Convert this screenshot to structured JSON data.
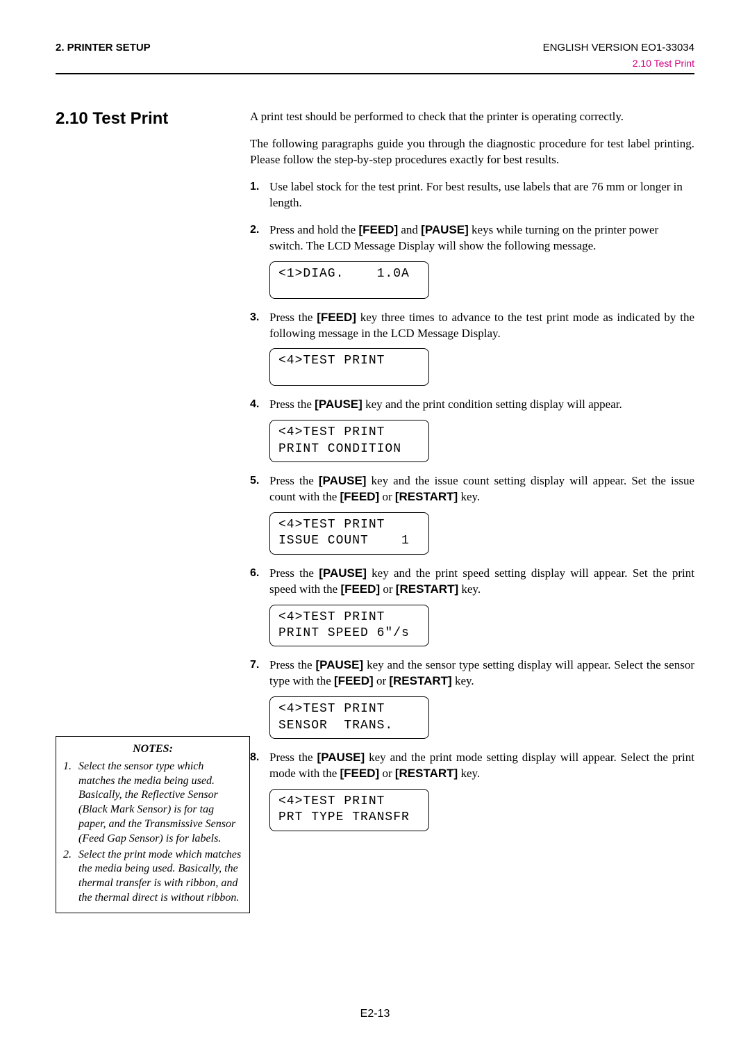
{
  "header": {
    "left": "2. PRINTER SETUP",
    "right_top": "ENGLISH VERSION EO1-33034",
    "right_sub": "2.10 Test Print"
  },
  "section_title": "2.10  Test Print",
  "intro1": "A print test should be performed to check that the printer is operating correctly.",
  "intro2": "The following paragraphs guide you through the diagnostic procedure for test label printing.  Please follow the step-by-step procedures exactly for best results.",
  "steps": {
    "s1": {
      "num": "1.",
      "text": "Use label stock for the test print.  For best results, use labels that are 76 mm or longer in length."
    },
    "s2": {
      "num": "2.",
      "pre": "Press and hold the ",
      "k1": "[FEED]",
      "mid1": " and ",
      "k2": "[PAUSE]",
      "post": " keys while turning on the printer power switch.  The LCD Message Display will show the following message.",
      "lcd": "<1>DIAG.    1.0A"
    },
    "s3": {
      "num": "3.",
      "pre": "Press the ",
      "k1": "[FEED]",
      "post": " key three times to advance to the test print mode as indicated by the following message in the LCD Message Display.",
      "lcd": "<4>TEST PRINT"
    },
    "s4": {
      "num": "4.",
      "pre": "Press the ",
      "k1": "[PAUSE]",
      "post": " key and the print condition setting display will appear.",
      "lcd": "<4>TEST PRINT\nPRINT CONDITION"
    },
    "s5": {
      "num": "5.",
      "pre": "Press the ",
      "k1": "[PAUSE]",
      "mid1": " key and the issue count setting display will appear.  Set the issue count with the ",
      "k2": "[FEED]",
      "mid2": " or ",
      "k3": "[RESTART]",
      "post": " key.",
      "lcd": "<4>TEST PRINT\nISSUE COUNT    1"
    },
    "s6": {
      "num": "6.",
      "pre": "Press the ",
      "k1": "[PAUSE]",
      "mid1": " key and the print speed setting display will appear.  Set the print speed with the ",
      "k2": "[FEED]",
      "mid2": " or ",
      "k3": "[RESTART]",
      "post": " key.",
      "lcd": "<4>TEST PRINT\nPRINT SPEED 6\"/s"
    },
    "s7": {
      "num": "7.",
      "pre": "Press the ",
      "k1": "[PAUSE]",
      "mid1": " key and the sensor type setting display will appear.  Select the sensor type with the ",
      "k2": "[FEED]",
      "mid2": " or ",
      "k3": "[RESTART]",
      "post": " key.",
      "lcd": "<4>TEST PRINT\nSENSOR  TRANS."
    },
    "s8": {
      "num": "8.",
      "pre": " Press the ",
      "k1": "[PAUSE]",
      "mid1": " key and the print mode setting display will appear.   Select the print mode with the ",
      "k2": "[FEED]",
      "mid2": " or ",
      "k3": "[RESTART]",
      "post": " key.",
      "lcd": "<4>TEST PRINT\nPRT TYPE TRANSFR"
    }
  },
  "notes": {
    "title": "NOTES:",
    "n1": {
      "num": "1.",
      "text": "Select the sensor type which matches the media being used.  Basically, the Reflective Sensor (Black Mark Sensor) is for tag paper, and the Transmissive Sensor (Feed Gap Sensor) is for labels."
    },
    "n2": {
      "num": "2.",
      "text": "Select the print mode which matches the media being used.  Basically, the thermal transfer is with ribbon, and the thermal direct is without ribbon."
    }
  },
  "footer": "E2-13"
}
